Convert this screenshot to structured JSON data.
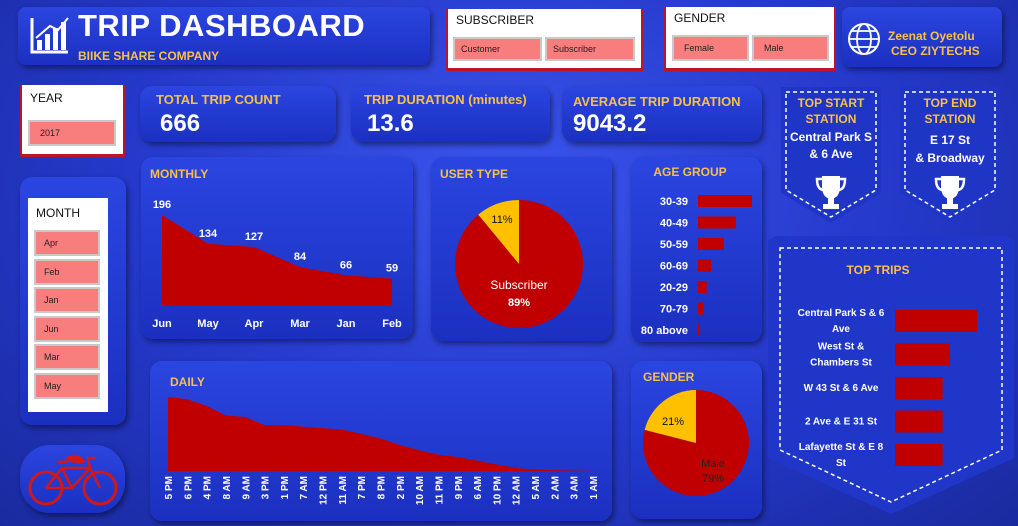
{
  "header": {
    "title": "TRIP DASHBOARD",
    "subtitle": "BIIKE SHARE COMPANY"
  },
  "author": {
    "name": "Zeenat Oyetolu",
    "role": "CEO ZIYTECHS"
  },
  "subscriber_slicer": {
    "title": "SUBSCRIBER",
    "options": [
      "Customer",
      "Subscriber"
    ]
  },
  "gender_slicer": {
    "title": "GENDER",
    "options": [
      "Female",
      "Male"
    ]
  },
  "year_slicer": {
    "title": "YEAR",
    "options": [
      "2017"
    ]
  },
  "month_slicer": {
    "title": "MONTH",
    "options": [
      "Apr",
      "Feb",
      "Jan",
      "Jun",
      "Mar",
      "May"
    ]
  },
  "kpis": {
    "total_trip_label": "TOTAL TRIP COUNT",
    "total_trip_value": "666",
    "duration_label": "TRIP DURATION (minutes)",
    "duration_value": "13.6",
    "avg_label": "AVERAGE TRIP DURATION",
    "avg_value": "9043.2"
  },
  "top_start": {
    "title1": "TOP START",
    "title2": "STATION",
    "line1": "Central Park S",
    "line2": "& 6 Ave"
  },
  "top_end": {
    "title1": "TOP END",
    "title2": "STATION",
    "line1": "E 17 St",
    "line2": "& Broadway"
  },
  "colors": {
    "accent": "#c00000",
    "highlight": "#f8c048",
    "pie_yellow": "#ffc000"
  },
  "chart_data": [
    {
      "type": "area",
      "title": "MONTHLY",
      "categories": [
        "Jun",
        "May",
        "Apr",
        "Mar",
        "Jan",
        "Feb"
      ],
      "values": [
        196,
        134,
        127,
        84,
        66,
        59
      ]
    },
    {
      "type": "pie",
      "title": "USER TYPE",
      "slices": [
        {
          "name": "Subscriber",
          "value": 89,
          "label": "89%"
        },
        {
          "name": "",
          "value": 11,
          "label": "11%"
        }
      ]
    },
    {
      "type": "bar",
      "title": "AGE GROUP",
      "categories": [
        "30-39",
        "40-49",
        "50-59",
        "60-69",
        "20-29",
        "70-79",
        "80 above"
      ],
      "values": [
        100,
        70,
        48,
        24,
        16,
        10,
        2
      ]
    },
    {
      "type": "area",
      "title": "DAILY",
      "categories": [
        "5 PM",
        "6 PM",
        "4 PM",
        "8 AM",
        "9 AM",
        "3 PM",
        "1 PM",
        "7 AM",
        "12 PM",
        "11 AM",
        "7 PM",
        "8 PM",
        "2 PM",
        "10 AM",
        "11 PM",
        "9 PM",
        "6 AM",
        "10 PM",
        "12 AM",
        "5 AM",
        "2 AM",
        "3 AM",
        "1 AM"
      ],
      "values": [
        100,
        97,
        88,
        75,
        73,
        62,
        62,
        60,
        58,
        56,
        50,
        44,
        35,
        28,
        22,
        19,
        14,
        9,
        4,
        2,
        1,
        0.5,
        0.2
      ]
    },
    {
      "type": "pie",
      "title": "GENDER",
      "slices": [
        {
          "name": "Male",
          "value": 79,
          "label": "79%"
        },
        {
          "name": "",
          "value": 21,
          "label": "21%"
        }
      ]
    },
    {
      "type": "bar",
      "title": "TOP TRIPS",
      "categories": [
        "Central Park S & 6 Ave",
        "West St & Chambers St",
        "W 43 St & 6 Ave",
        "2 Ave & E 31 St",
        "Lafayette St & E 8 St"
      ],
      "category_lines": [
        [
          "Central Park S & 6",
          "Ave"
        ],
        [
          "West St &",
          "Chambers St"
        ],
        [
          "W 43 St & 6 Ave"
        ],
        [
          "2 Ave & E 31 St"
        ],
        [
          "Lafayette St & E 8",
          "St"
        ]
      ],
      "values": [
        100,
        67,
        58,
        58,
        58
      ]
    }
  ]
}
